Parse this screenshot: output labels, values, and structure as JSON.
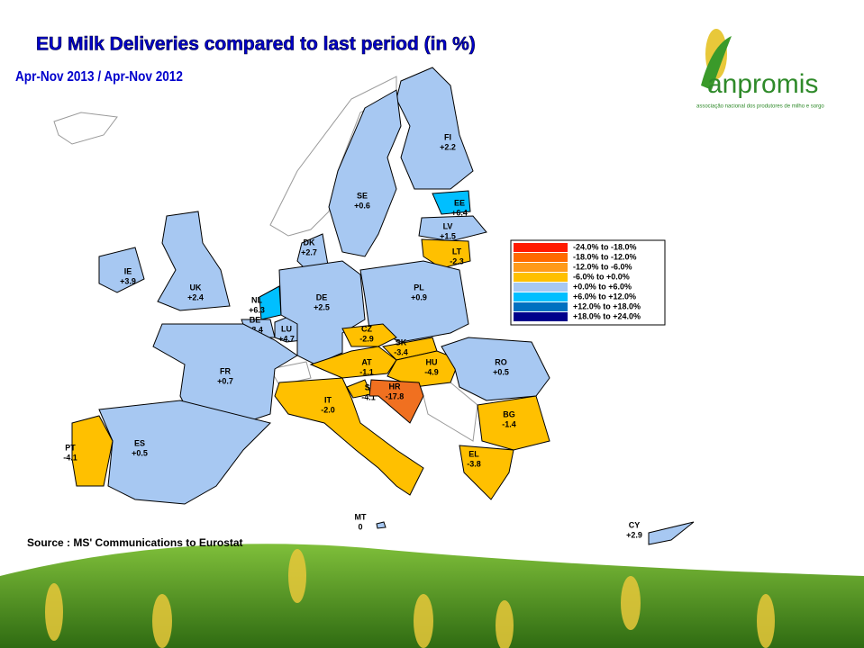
{
  "header": {
    "title": "EU Milk Deliveries compared to last period (in %)",
    "subtitle": "Apr-Nov  2013 / Apr-Nov 2012"
  },
  "logo": {
    "name": "anpromis",
    "tagline": "associação nacional dos produtores de milho e sorgo"
  },
  "legend": [
    {
      "label": "-24.0%  to  -18.0%",
      "color": "#ff1a00"
    },
    {
      "label": "-18.0%  to  -12.0%",
      "color": "#ff6a00"
    },
    {
      "label": "-12.0%  to  -6.0%",
      "color": "#ff9a1a"
    },
    {
      "label": "-6.0%  to  +0.0%",
      "color": "#ffc000"
    },
    {
      "label": "+0.0%  to  +6.0%",
      "color": "#a7c8f2"
    },
    {
      "label": "+6.0%  to  +12.0%",
      "color": "#00bfff"
    },
    {
      "label": "+12.0%  to  +18.0%",
      "color": "#0070c0"
    },
    {
      "label": "+18.0%  to  +24.0%",
      "color": "#00008b"
    }
  ],
  "countries": [
    {
      "code": "FI",
      "value": "+2.2",
      "color": "#a7c8f2"
    },
    {
      "code": "SE",
      "value": "+0.6",
      "color": "#a7c8f2"
    },
    {
      "code": "EE",
      "value": "+6.4",
      "color": "#00bfff"
    },
    {
      "code": "LV",
      "value": "+1.5",
      "color": "#a7c8f2"
    },
    {
      "code": "LT",
      "value": "-2.3",
      "color": "#ffc000"
    },
    {
      "code": "DK",
      "value": "+2.7",
      "color": "#a7c8f2"
    },
    {
      "code": "IE",
      "value": "+3.9",
      "color": "#a7c8f2"
    },
    {
      "code": "UK",
      "value": "+2.4",
      "color": "#a7c8f2"
    },
    {
      "code": "NL",
      "value": "+6.3",
      "color": "#00bfff"
    },
    {
      "code": "BE",
      "value": "+3.4",
      "color": "#a7c8f2"
    },
    {
      "code": "LU",
      "value": "+4.7",
      "color": "#a7c8f2"
    },
    {
      "code": "DE",
      "value": "+2.5",
      "color": "#a7c8f2"
    },
    {
      "code": "PL",
      "value": "+0.9",
      "color": "#a7c8f2"
    },
    {
      "code": "CZ",
      "value": "-2.9",
      "color": "#ffc000"
    },
    {
      "code": "SK",
      "value": "-3.4",
      "color": "#ffc000"
    },
    {
      "code": "AT",
      "value": "-1.1",
      "color": "#ffc000"
    },
    {
      "code": "HU",
      "value": "-4.9",
      "color": "#ffc000"
    },
    {
      "code": "RO",
      "value": "+0.5",
      "color": "#a7c8f2"
    },
    {
      "code": "SI",
      "value": "-4.1",
      "color": "#ffc000"
    },
    {
      "code": "HR",
      "value": "-17.8",
      "color": "#f07020"
    },
    {
      "code": "IT",
      "value": "-2.0",
      "color": "#ffc000"
    },
    {
      "code": "FR",
      "value": "+0.7",
      "color": "#a7c8f2"
    },
    {
      "code": "ES",
      "value": "+0.5",
      "color": "#a7c8f2"
    },
    {
      "code": "PT",
      "value": "-4.1",
      "color": "#ffc000"
    },
    {
      "code": "BG",
      "value": "-1.4",
      "color": "#ffc000"
    },
    {
      "code": "EL",
      "value": "-3.8",
      "color": "#ffc000"
    },
    {
      "code": "MT",
      "value": "0",
      "color": "#a7c8f2"
    },
    {
      "code": "CY",
      "value": "+2.9",
      "color": "#a7c8f2"
    }
  ],
  "source": "Source : MS' Communications to Eurostat"
}
